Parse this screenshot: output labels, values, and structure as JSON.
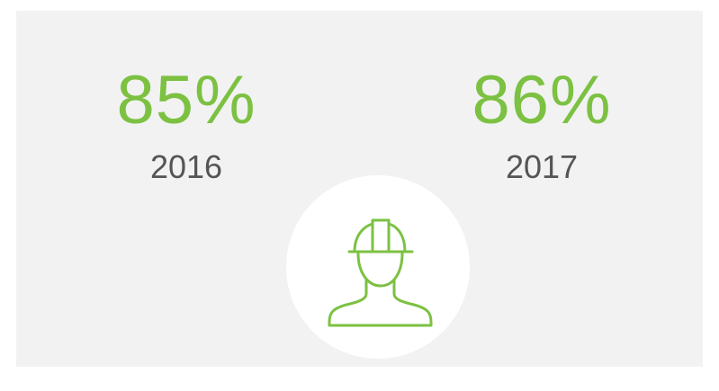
{
  "stats": [
    {
      "value": "85%",
      "year": "2016"
    },
    {
      "value": "86%",
      "year": "2017"
    }
  ]
}
